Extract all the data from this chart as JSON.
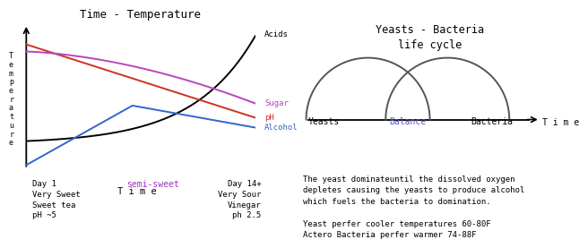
{
  "left_title": "Time - Temperature",
  "right_title": "Yeasts - Bacteria\nlife cycle",
  "ylabel": "T\ne\nm\np\ne\nr\na\nt\nu\nr\ne",
  "xlabel": "T i m e",
  "lines": {
    "acids": {
      "color": "#000000",
      "label": "Acids"
    },
    "ph": {
      "color": "#cc3322",
      "label": "pH"
    },
    "sugar": {
      "color": "#bb44bb",
      "label": "Sugar"
    },
    "alcohol": {
      "color": "#3366cc",
      "label": "Alcohol"
    }
  },
  "bottom_left_text": "Day 1\nVery Sweet\nSweet tea\npH ~5",
  "bottom_center_text": "semi-sweet",
  "bottom_center_color": "#9933bb",
  "bottom_right_text": "Day 14+\nVery Sour\nVinegar\nph 2.5",
  "right_description": "The yeast dominateuntil the dissolved oxygen\ndepletes causing the yeasts to produce alcohol\nwhich fuels the bacteria to domination.\n\nYeast perfer cooler temperatures 60-80F\nActero Bacteria perfer warmer 74-88F",
  "yeast_label": "Yeasts",
  "balance_label": "Balance",
  "balance_color": "#5555cc",
  "bacteria_label": "Bacteria",
  "time_label": "T i m e",
  "background": "#ffffff",
  "arc_color": "#555555"
}
